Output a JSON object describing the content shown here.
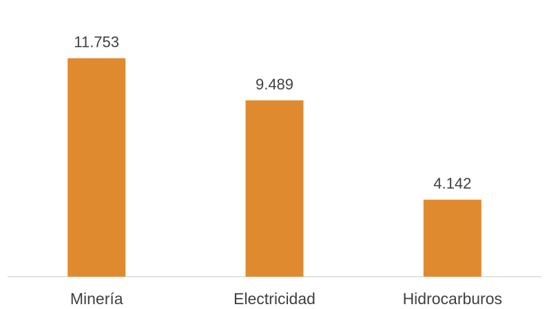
{
  "chart_data": {
    "type": "bar",
    "categories": [
      "Minería",
      "Electricidad",
      "Hidrocarburos"
    ],
    "values": [
      11.753,
      9.489,
      4.142
    ],
    "value_labels": [
      "11.753",
      "9.489",
      "4.142"
    ],
    "bar_color": "#DF8A2E",
    "axis_color": "#D9D9D9",
    "text_color": "#404040",
    "ylim": [
      0,
      13.5
    ],
    "grid": false,
    "legend": "none"
  }
}
